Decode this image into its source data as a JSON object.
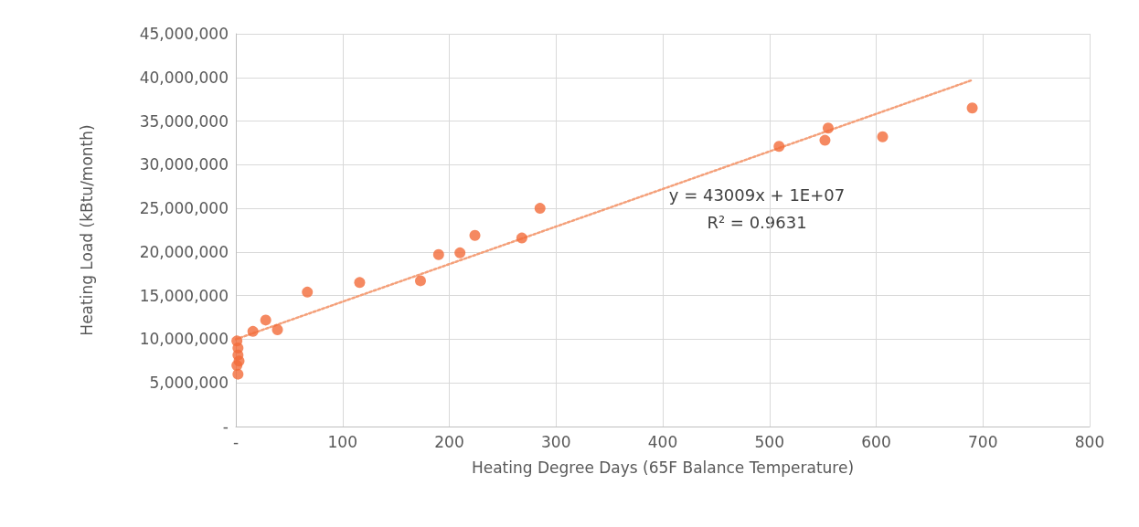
{
  "chart_data": {
    "type": "scatter",
    "xlabel": "Heating Degree Days (65F Balance Temperature)",
    "ylabel": "Heating Load (kBtu/month)",
    "xlim": [
      0,
      800
    ],
    "xticks": [
      {
        "value": 0,
        "label": "-"
      },
      100,
      200,
      300,
      400,
      500,
      600,
      700,
      800
    ],
    "ylim": [
      0,
      45000000
    ],
    "yticks": [
      {
        "value": 0,
        "label": "-"
      },
      {
        "value": 5000000,
        "label": "5,000,000"
      },
      {
        "value": 10000000,
        "label": "10,000,000"
      },
      {
        "value": 15000000,
        "label": "15,000,000"
      },
      {
        "value": 20000000,
        "label": "20,000,000"
      },
      {
        "value": 25000000,
        "label": "25,000,000"
      },
      {
        "value": 30000000,
        "label": "30,000,000"
      },
      {
        "value": 35000000,
        "label": "35,000,000"
      },
      {
        "value": 40000000,
        "label": "40,000,000"
      },
      {
        "value": 45000000,
        "label": "45,000,000"
      }
    ],
    "grid": true,
    "marker": "circle",
    "series": [
      {
        "color": "#f26b3a",
        "x": [
          1,
          2,
          2,
          3,
          1,
          2,
          16,
          28,
          39,
          67,
          116,
          173,
          190,
          210,
          224,
          268,
          285,
          509,
          552,
          555,
          606,
          690
        ],
        "values": [
          9800000,
          9000000,
          8200000,
          7500000,
          7000000,
          6000000,
          10900000,
          12200000,
          11100000,
          15400000,
          16500000,
          16700000,
          19700000,
          19900000,
          21900000,
          21600000,
          25000000,
          32100000,
          32800000,
          34200000,
          33200000,
          36500000
        ]
      },
      {
        "type": "line",
        "color": "#f4a07a",
        "line_style": "dotted",
        "marker": "none",
        "x": [
          0,
          690
        ],
        "values": [
          10000000,
          39700000
        ]
      }
    ],
    "annotations": [
      "y = 43009x + 1E+07\nR² = 0.9631"
    ]
  }
}
